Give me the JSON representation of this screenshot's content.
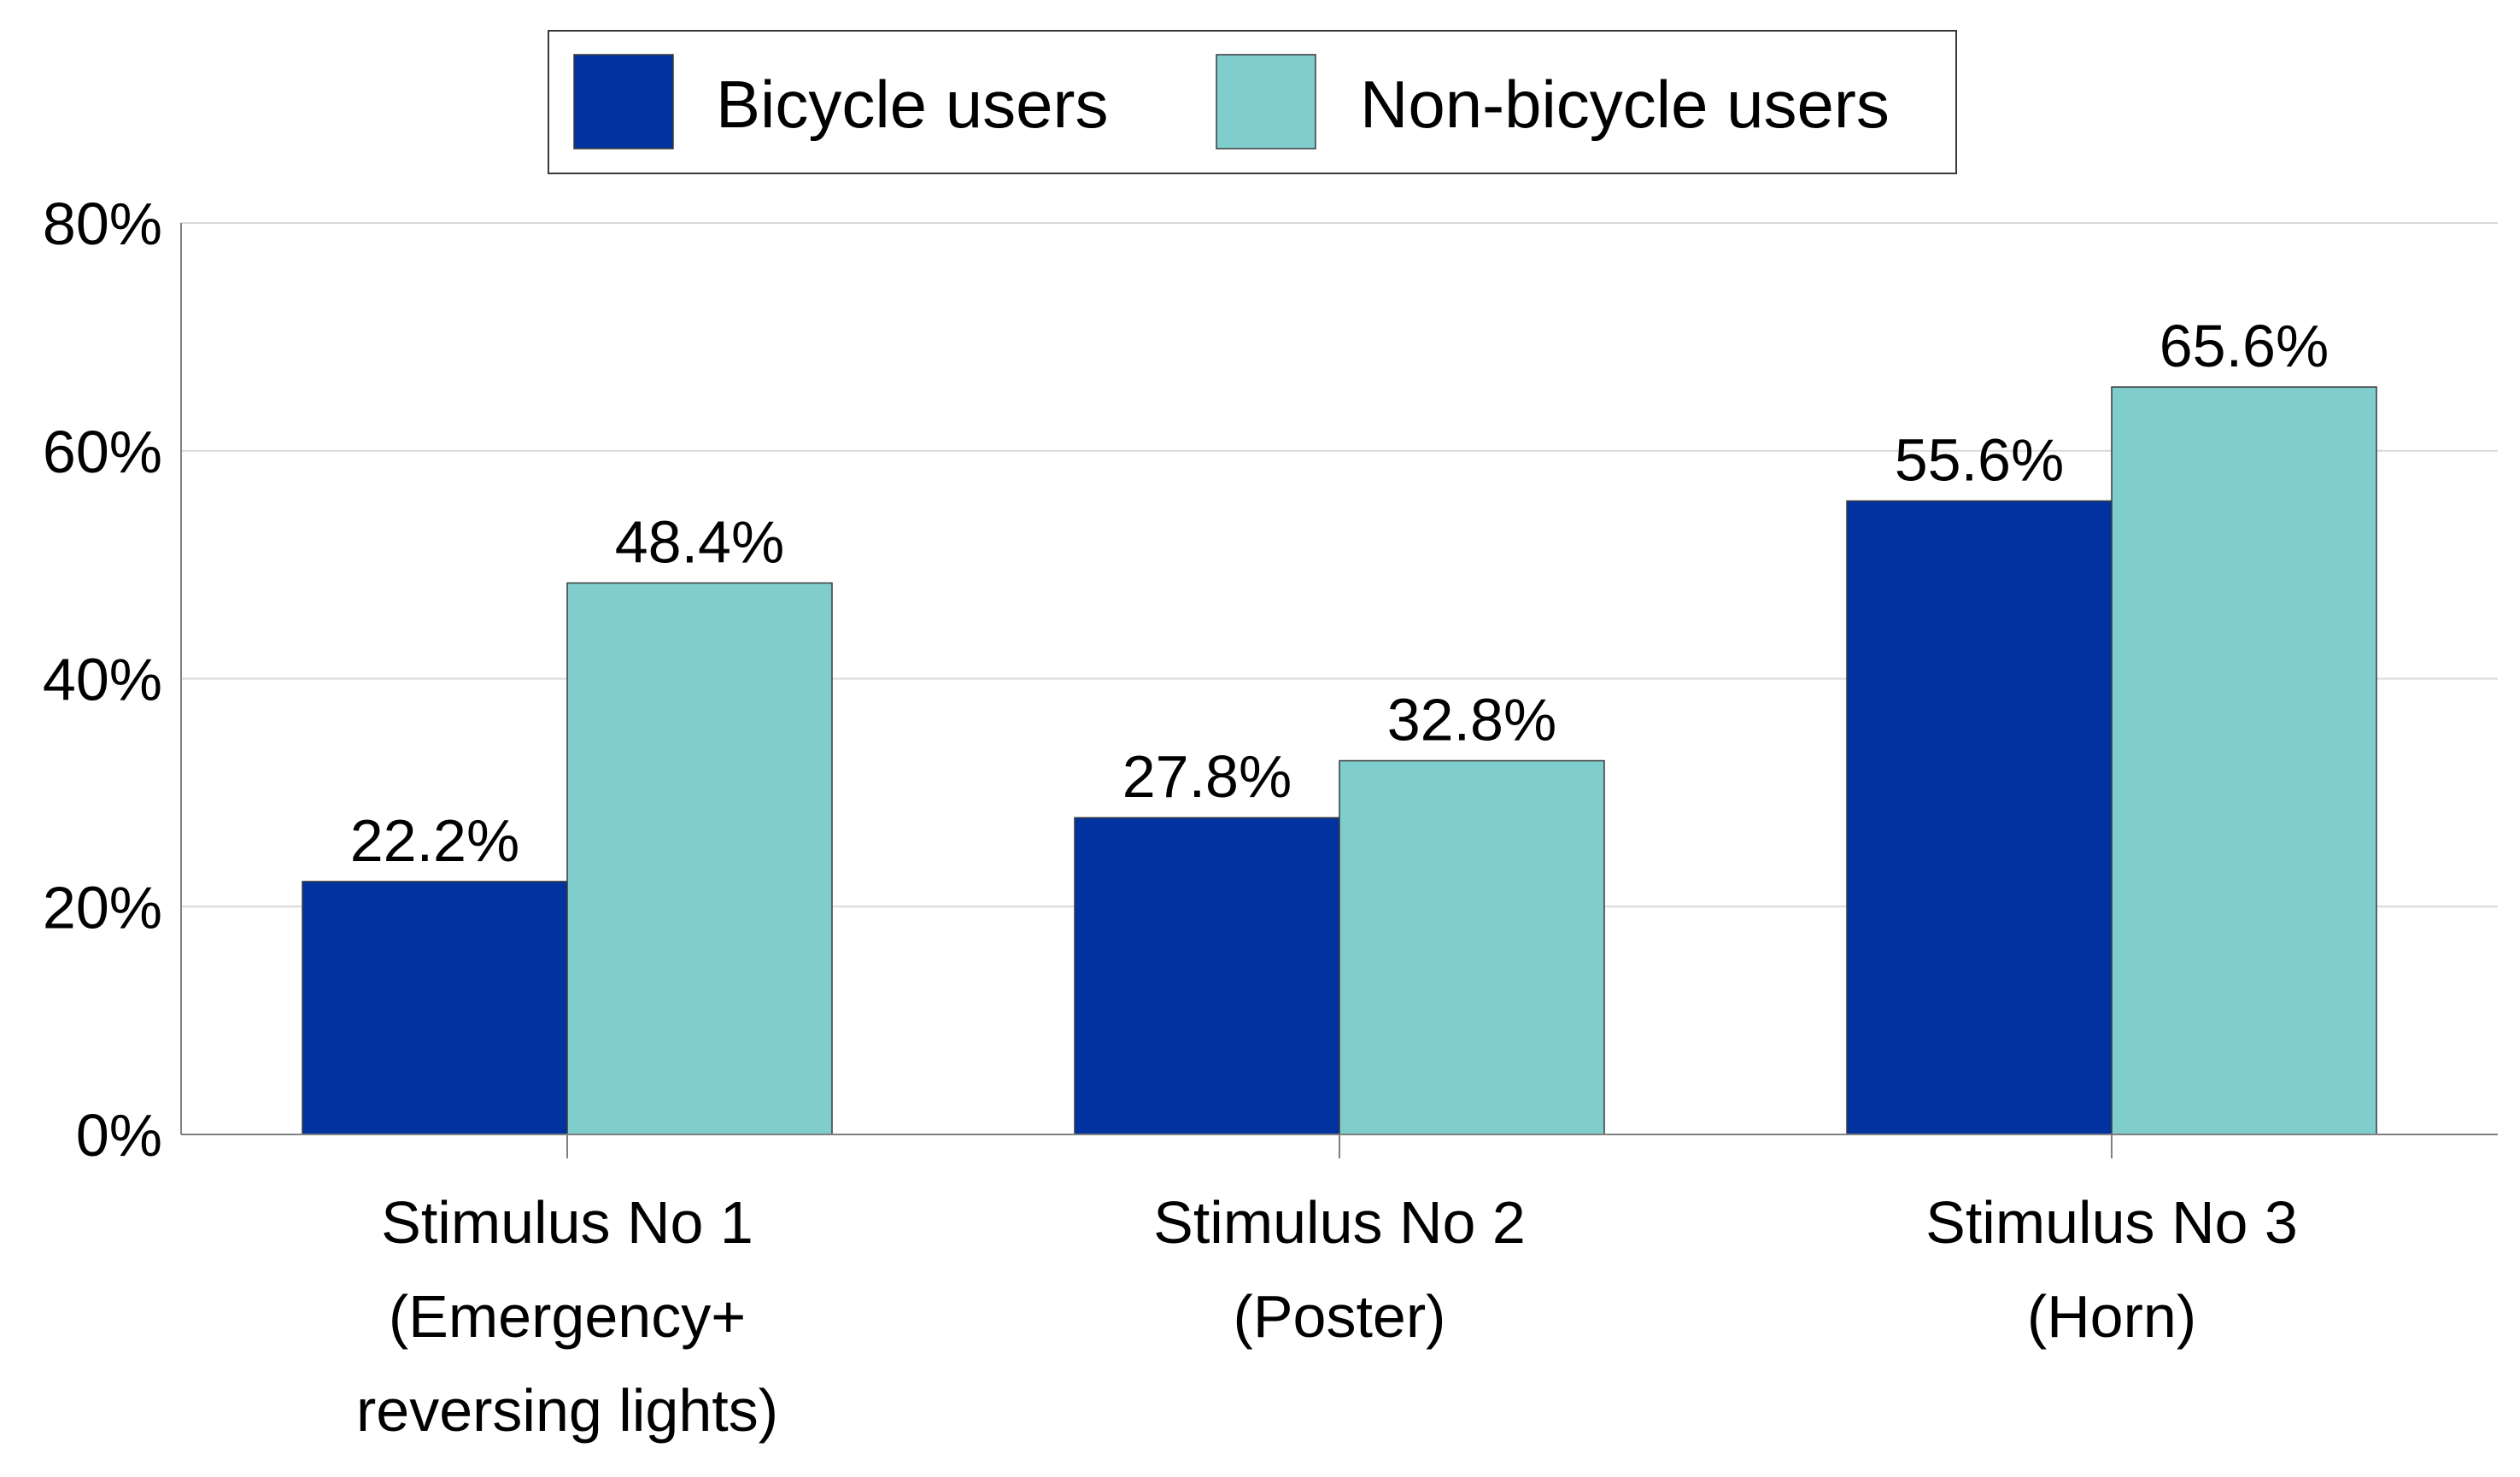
{
  "chart_data": {
    "type": "bar",
    "title": "",
    "xlabel": "",
    "ylabel": "",
    "categories": [
      [
        "Stimulus No 1",
        "(Emergency+",
        "reversing lights)"
      ],
      [
        "Stimulus No 2",
        "(Poster)"
      ],
      [
        "Stimulus No 3",
        "(Horn)"
      ]
    ],
    "series": [
      {
        "name": "Bicycle users",
        "color": "#0033A0",
        "values": [
          22.2,
          27.8,
          55.6
        ],
        "labels": [
          "22.2%",
          "27.8%",
          "55.6%"
        ]
      },
      {
        "name": "Non-bicycle users",
        "color": "#80CDCD",
        "values": [
          48.4,
          32.8,
          65.6
        ],
        "labels": [
          "48.4%",
          "32.8%",
          "65.6%"
        ]
      }
    ],
    "ylim": [
      0,
      80
    ],
    "yticks": [
      0,
      20,
      40,
      60,
      80
    ],
    "ytick_labels": [
      "0%",
      "20%",
      "40%",
      "60%",
      "80%"
    ],
    "grid": true,
    "legend": "top-center"
  }
}
